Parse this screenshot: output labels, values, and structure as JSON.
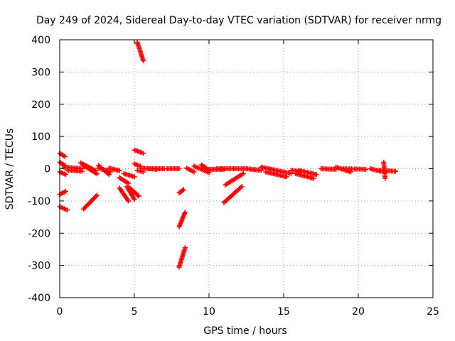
{
  "chart_data": {
    "type": "scatter",
    "title": "Day 249 of 2024, Sidereal Day-to-day VTEC variation (SDTVAR) for receiver nrmg",
    "xlabel": "GPS time / hours",
    "ylabel": "SDTVAR / TECUs",
    "xlim": [
      0,
      25
    ],
    "ylim": [
      -400,
      400
    ],
    "xticks": [
      0,
      5,
      10,
      15,
      20,
      25
    ],
    "xtick_labels": [
      "0",
      "5",
      "10",
      "15",
      "20",
      "25"
    ],
    "yticks": [
      -400,
      -300,
      -200,
      -100,
      0,
      100,
      200,
      300,
      400
    ],
    "ytick_labels": [
      "-400",
      "-300",
      "-200",
      "-100",
      "0",
      "100",
      "200",
      "300",
      "400"
    ],
    "grid": true,
    "marker": "plus",
    "color": "#ff0000",
    "segments": [
      {
        "x": [
          0.0,
          0.35
        ],
        "y": [
          48,
          38
        ]
      },
      {
        "x": [
          0.0,
          0.35
        ],
        "y": [
          20,
          10
        ]
      },
      {
        "x": [
          0.0,
          0.4
        ],
        "y": [
          -10,
          -18
        ]
      },
      {
        "x": [
          0.0,
          0.4
        ],
        "y": [
          -80,
          -70
        ]
      },
      {
        "x": [
          0.0,
          0.5
        ],
        "y": [
          -118,
          -128
        ]
      },
      {
        "x": [
          0.3,
          1.5
        ],
        "y": [
          5,
          0
        ]
      },
      {
        "x": [
          0.5,
          1.5
        ],
        "y": [
          -4,
          -8
        ]
      },
      {
        "x": [
          1.4,
          2.4
        ],
        "y": [
          18,
          -6
        ]
      },
      {
        "x": [
          1.6,
          2.5
        ],
        "y": [
          10,
          -16
        ]
      },
      {
        "x": [
          1.6,
          2.5
        ],
        "y": [
          -125,
          -82
        ]
      },
      {
        "x": [
          2.6,
          3.3
        ],
        "y": [
          10,
          -18
        ]
      },
      {
        "x": [
          2.6,
          3.4
        ],
        "y": [
          2,
          -10
        ]
      },
      {
        "x": [
          3.3,
          4.0
        ],
        "y": [
          2,
          -6
        ]
      },
      {
        "x": [
          4.0,
          4.6
        ],
        "y": [
          -28,
          -45
        ]
      },
      {
        "x": [
          4.0,
          4.6
        ],
        "y": [
          -60,
          -100
        ]
      },
      {
        "x": [
          4.3,
          5.0
        ],
        "y": [
          -15,
          -25
        ]
      },
      {
        "x": [
          4.5,
          5.0
        ],
        "y": [
          -55,
          -95
        ]
      },
      {
        "x": [
          4.7,
          5.3
        ],
        "y": [
          -60,
          -85
        ]
      },
      {
        "x": [
          5.0,
          5.6
        ],
        "y": [
          58,
          48
        ]
      },
      {
        "x": [
          5.0,
          5.4
        ],
        "y": [
          15,
          8
        ]
      },
      {
        "x": [
          5.2,
          5.6
        ],
        "y": [
          -5,
          -10
        ]
      },
      {
        "x": [
          5.2,
          5.6
        ],
        "y": [
          392,
          335
        ]
      },
      {
        "x": [
          5.5,
          6.5
        ],
        "y": [
          2,
          -2
        ]
      },
      {
        "x": [
          6.0,
          7.0
        ],
        "y": [
          0,
          0
        ]
      },
      {
        "x": [
          7.2,
          8.0
        ],
        "y": [
          0,
          0
        ]
      },
      {
        "x": [
          8.0,
          8.3
        ],
        "y": [
          -75,
          -65
        ]
      },
      {
        "x": [
          8.0,
          8.4
        ],
        "y": [
          -180,
          -135
        ]
      },
      {
        "x": [
          8.0,
          8.4
        ],
        "y": [
          -305,
          -245
        ]
      },
      {
        "x": [
          8.5,
          9.0
        ],
        "y": [
          2,
          -10
        ]
      },
      {
        "x": [
          9.0,
          10.0
        ],
        "y": [
          8,
          -12
        ]
      },
      {
        "x": [
          9.5,
          10.0
        ],
        "y": [
          12,
          -5
        ]
      },
      {
        "x": [
          10.0,
          11.0
        ],
        "y": [
          -2,
          -2
        ]
      },
      {
        "x": [
          10.5,
          12.5
        ],
        "y": [
          0,
          0
        ]
      },
      {
        "x": [
          11.0,
          12.2
        ],
        "y": [
          -105,
          -55
        ]
      },
      {
        "x": [
          11.1,
          12.3
        ],
        "y": [
          -50,
          -15
        ]
      },
      {
        "x": [
          12.5,
          13.5
        ],
        "y": [
          0,
          -5
        ]
      },
      {
        "x": [
          13.5,
          15.5
        ],
        "y": [
          5,
          -15
        ]
      },
      {
        "x": [
          13.8,
          15.2
        ],
        "y": [
          -10,
          -25
        ]
      },
      {
        "x": [
          15.5,
          16.2
        ],
        "y": [
          -5,
          -10
        ]
      },
      {
        "x": [
          15.8,
          17.0
        ],
        "y": [
          -15,
          -30
        ]
      },
      {
        "x": [
          16.0,
          17.2
        ],
        "y": [
          -5,
          -18
        ]
      },
      {
        "x": [
          17.5,
          18.5
        ],
        "y": [
          0,
          -2
        ]
      },
      {
        "x": [
          18.5,
          19.5
        ],
        "y": [
          5,
          -10
        ]
      },
      {
        "x": [
          19.0,
          20.5
        ],
        "y": [
          0,
          -2
        ]
      },
      {
        "x": [
          20.8,
          21.5
        ],
        "y": [
          0,
          -8
        ]
      },
      {
        "x": [
          21.4,
          22.5
        ],
        "y": [
          -5,
          -8
        ]
      },
      {
        "x": [
          21.7,
          21.8
        ],
        "y": [
          20,
          -30
        ]
      }
    ]
  }
}
